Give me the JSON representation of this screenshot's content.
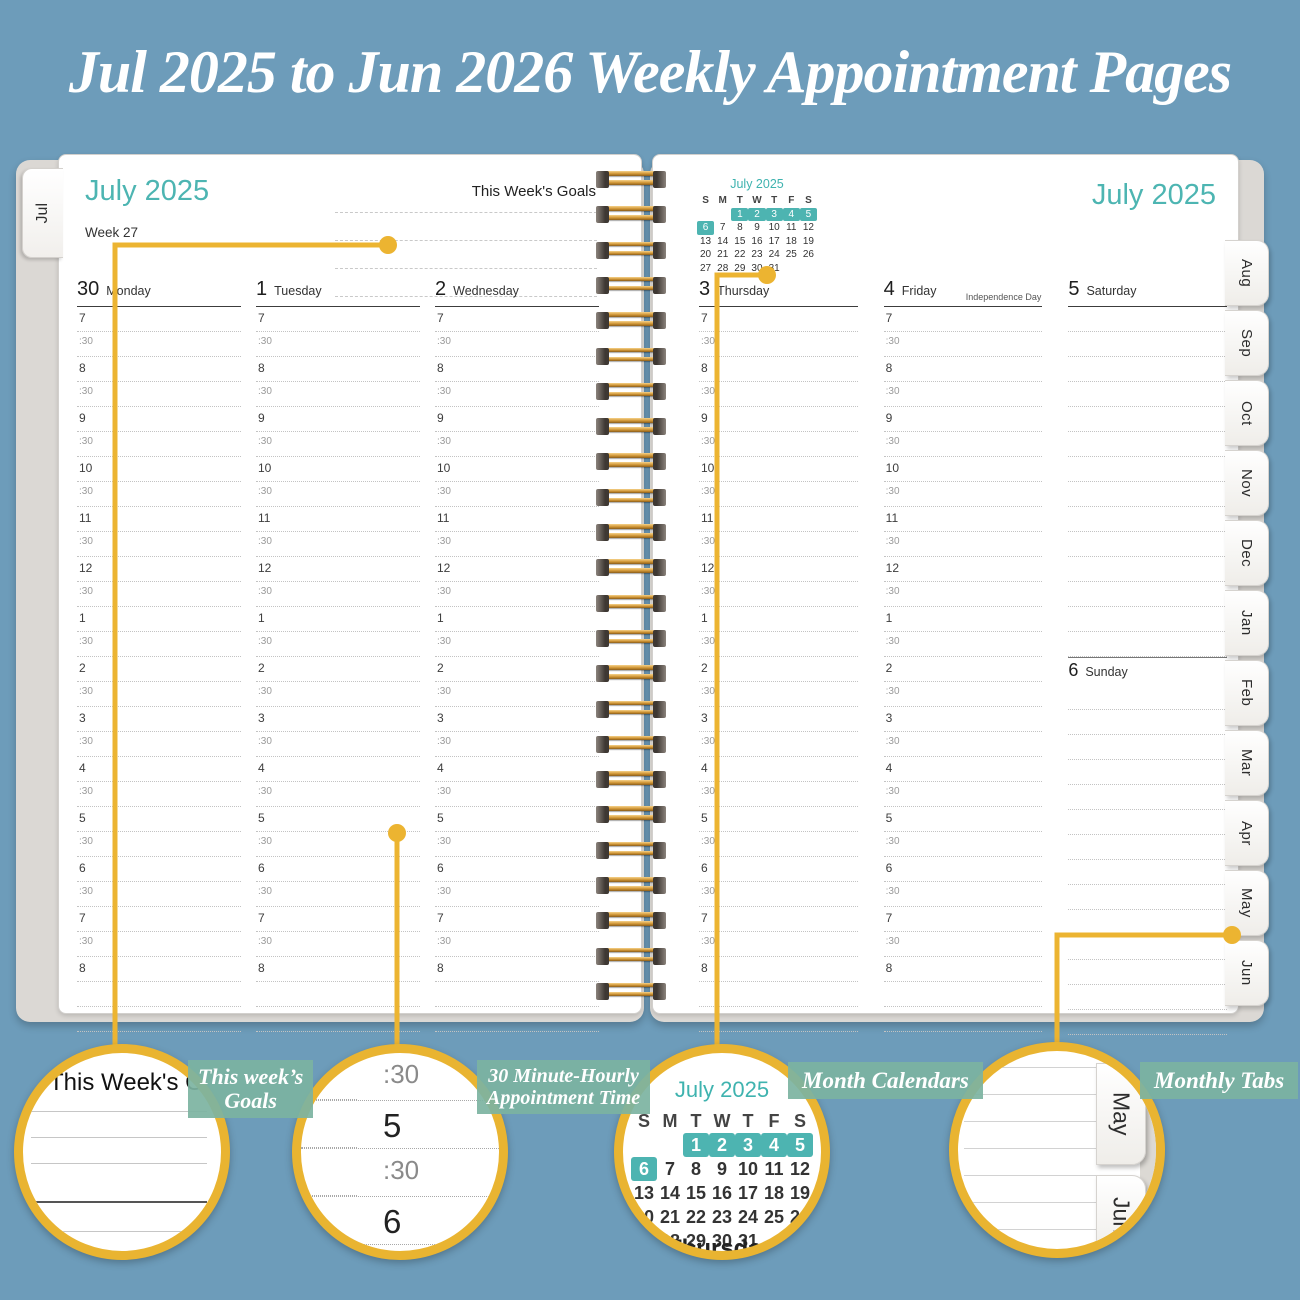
{
  "title": "Jul 2025 to Jun 2026 Weekly Appointment Pages",
  "left_page": {
    "tab": "Jul",
    "month_header": "July 2025",
    "goals_label": "This Week's Goals",
    "week_label": "Week 27",
    "days": [
      {
        "num": "30",
        "name": "Monday",
        "has_times": true
      },
      {
        "num": "1",
        "name": "Tuesday",
        "has_times": true
      },
      {
        "num": "2",
        "name": "Wednesday",
        "has_times": true
      }
    ]
  },
  "right_page": {
    "month_header": "July 2025",
    "mini_calendar": {
      "title": "July 2025",
      "weekday_headers": [
        "S",
        "M",
        "T",
        "W",
        "T",
        "F",
        "S"
      ],
      "weeks": [
        [
          "",
          "",
          "1",
          "2",
          "3",
          "4",
          "5"
        ],
        [
          "6",
          "7",
          "8",
          "9",
          "10",
          "11",
          "12"
        ],
        [
          "13",
          "14",
          "15",
          "16",
          "17",
          "18",
          "19"
        ],
        [
          "20",
          "21",
          "22",
          "23",
          "24",
          "25",
          "26"
        ],
        [
          "27",
          "28",
          "29",
          "30",
          "31",
          "",
          ""
        ]
      ],
      "highlighted": [
        "1",
        "2",
        "3",
        "4",
        "5",
        "6"
      ]
    },
    "days": [
      {
        "num": "3",
        "name": "Thursday",
        "has_times": true
      },
      {
        "num": "4",
        "name": "Friday",
        "note": "Independence Day",
        "has_times": true
      },
      {
        "num": "5",
        "name": "Saturday",
        "has_times": false
      }
    ],
    "sunday": {
      "num": "6",
      "name": "Sunday"
    }
  },
  "time_slots": [
    "7",
    ":30",
    "8",
    ":30",
    "9",
    ":30",
    "10",
    ":30",
    "11",
    ":30",
    "12",
    ":30",
    "1",
    ":30",
    "2",
    ":30",
    "3",
    ":30",
    "4",
    ":30",
    "5",
    ":30",
    "6",
    ":30",
    "7",
    ":30",
    "8"
  ],
  "tabs_right": [
    "Aug",
    "Sep",
    "Oct",
    "Nov",
    "Dec",
    "Jan",
    "Feb",
    "Mar",
    "Apr",
    "May",
    "Jun"
  ],
  "callouts": [
    {
      "label_lines": [
        "This week’s",
        "Goals"
      ],
      "magnified_text": "This Week's Goals"
    },
    {
      "label_lines": [
        "30 Minute-Hourly",
        "Appointment Time"
      ],
      "times": [
        ":30",
        "5",
        ":30",
        "6",
        ":30"
      ]
    },
    {
      "label_lines": [
        "Month Calendars"
      ]
    },
    {
      "label_lines": [
        "Monthly Tabs"
      ],
      "tabs": [
        "May",
        "Jun"
      ],
      "partial": ""
    }
  ],
  "magnified_calendar_partial_day": "Thursday",
  "colors": {
    "background": "#6d9cba",
    "accent_teal": "#4db5b2",
    "callout_yellow": "#ecb431",
    "badge_green": "#7cb3a1",
    "spiral_gold": "#cf9434"
  }
}
